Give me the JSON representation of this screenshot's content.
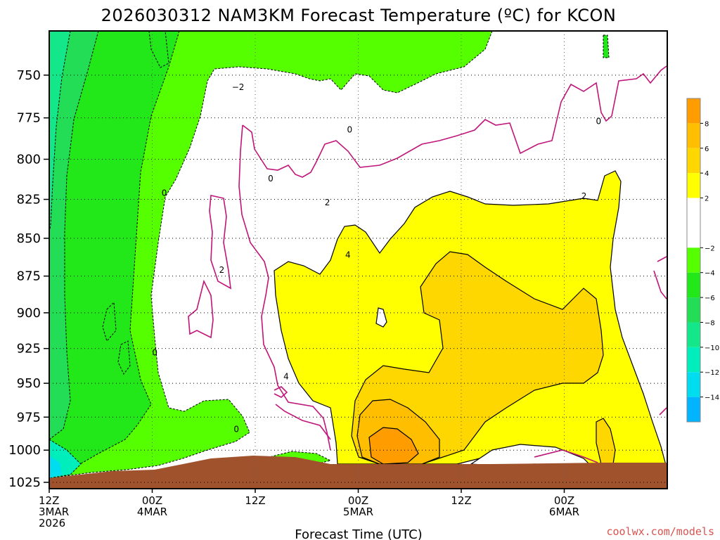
{
  "chart_data": {
    "type": "area",
    "title": "2026030312 NAM3KM Forecast Temperature (ºC) for KCON",
    "xlabel": "Forecast Time (UTC)",
    "credit": "coolwx.com/models",
    "pressure_levels": [
      750,
      775,
      800,
      825,
      850,
      875,
      900,
      925,
      950,
      975,
      1000,
      1025
    ],
    "pressure_range": [
      725,
      1030
    ],
    "y_scale": "log-pressure (inverted)",
    "time_hours": [
      0,
      12,
      24,
      36,
      48,
      60,
      72
    ],
    "time_range_hours": [
      0,
      72
    ],
    "time_ticks": [
      {
        "hour": 0,
        "lines": [
          "12Z",
          "3MAR",
          "2026"
        ]
      },
      {
        "hour": 12,
        "lines": [
          "00Z",
          "4MAR"
        ]
      },
      {
        "hour": 24,
        "lines": [
          "12Z"
        ]
      },
      {
        "hour": 36,
        "lines": [
          "00Z",
          "5MAR"
        ]
      },
      {
        "hour": 48,
        "lines": [
          "12Z"
        ]
      },
      {
        "hour": 60,
        "lines": [
          "00Z",
          "6MAR"
        ]
      }
    ],
    "colorbar": {
      "ticks": [
        "8",
        "6",
        "4",
        "2",
        "−2",
        "−4",
        "−6",
        "−8",
        "−10",
        "−12",
        "−14"
      ],
      "bins": [
        {
          "min": 8,
          "max": 10,
          "color": "#ff9d00"
        },
        {
          "min": 6,
          "max": 8,
          "color": "#ffbe00"
        },
        {
          "min": 4,
          "max": 6,
          "color": "#ffd700"
        },
        {
          "min": 2,
          "max": 4,
          "color": "#ffff00"
        },
        {
          "min": -2,
          "max": 2,
          "color": "#ffffff"
        },
        {
          "min": -4,
          "max": -2,
          "color": "#55ff00"
        },
        {
          "min": -6,
          "max": -4,
          "color": "#22e81a"
        },
        {
          "min": -8,
          "max": -6,
          "color": "#22dd55"
        },
        {
          "min": -10,
          "max": -8,
          "color": "#14e78a"
        },
        {
          "min": -12,
          "max": -10,
          "color": "#00eebb"
        },
        {
          "min": -14,
          "max": -12,
          "color": "#00ddee"
        },
        {
          "min": -16,
          "max": -14,
          "color": "#00b4ff"
        }
      ]
    },
    "contour_labels": [
      {
        "text": "−2",
        "hour": 22,
        "p": 757
      },
      {
        "text": "0",
        "hour": 35,
        "p": 782
      },
      {
        "text": "0",
        "hour": 64,
        "p": 777
      },
      {
        "text": "0",
        "hour": 25.8,
        "p": 812
      },
      {
        "text": "0",
        "hour": 13.4,
        "p": 821
      },
      {
        "text": "0",
        "hour": 12.3,
        "p": 928
      },
      {
        "text": "0",
        "hour": 21.8,
        "p": 984
      },
      {
        "text": "2",
        "hour": 20.1,
        "p": 871
      },
      {
        "text": "2",
        "hour": 32.4,
        "p": 827
      },
      {
        "text": "2",
        "hour": 62.3,
        "p": 823
      },
      {
        "text": "4",
        "hour": 34.8,
        "p": 861
      },
      {
        "text": "4",
        "hour": 27.6,
        "p": 945
      }
    ],
    "terrain_color": "#a0522d"
  }
}
